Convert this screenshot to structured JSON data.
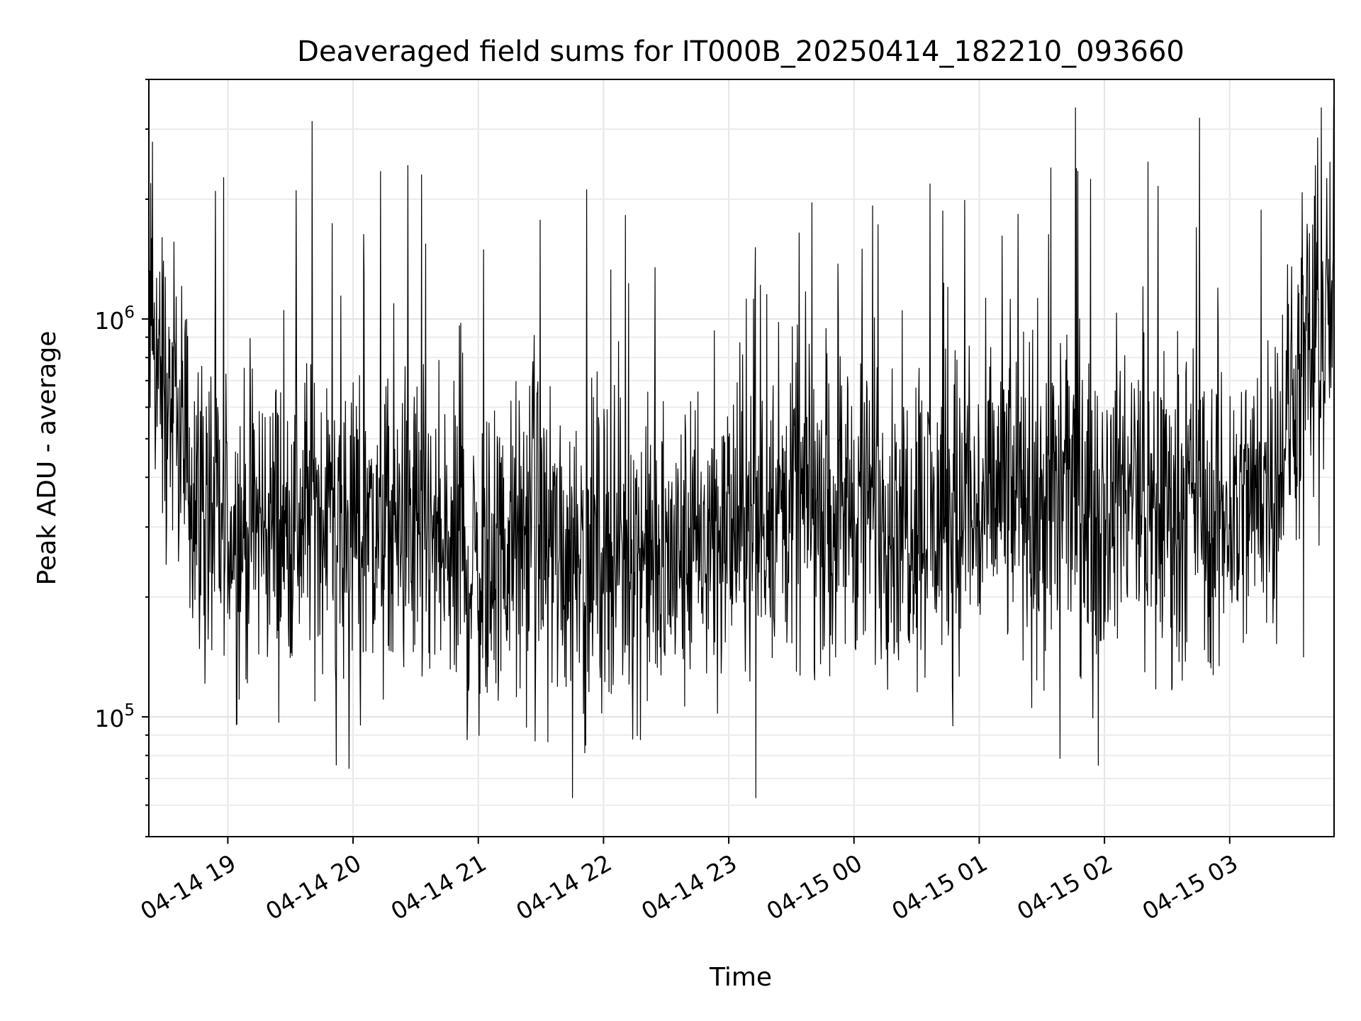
{
  "chart_data": {
    "type": "line",
    "title": "Deaveraged field sums for IT000B_20250414_182210_093660",
    "xlabel": "Time",
    "ylabel": "Peak ADU - average",
    "yscale": "log",
    "xlim": [
      "2025-04-14 18:22:10",
      "2025-04-15 03:50:00"
    ],
    "ylim": [
      50000,
      4000000
    ],
    "x_ticks": [
      "04-14 19",
      "04-14 20",
      "04-14 21",
      "04-14 22",
      "04-14 23",
      "04-15 00",
      "04-15 01",
      "04-15 02",
      "04-15 03"
    ],
    "y_ticks": [
      {
        "base": "10",
        "exp": "5"
      },
      {
        "base": "10",
        "exp": "6"
      }
    ],
    "grid": true,
    "line_color": "#000000",
    "series": [
      {
        "x": [
          "2025-04-14 18:22",
          "2025-04-14 18:30",
          "2025-04-14 18:40",
          "2025-04-14 18:50",
          "2025-04-14 19:00",
          "2025-04-14 19:10",
          "2025-04-14 19:20",
          "2025-04-14 19:30",
          "2025-04-14 19:40",
          "2025-04-14 19:50",
          "2025-04-14 20:00",
          "2025-04-14 20:10",
          "2025-04-14 20:20",
          "2025-04-14 20:30",
          "2025-04-14 20:40",
          "2025-04-14 20:50",
          "2025-04-14 21:00",
          "2025-04-14 21:10",
          "2025-04-14 21:20",
          "2025-04-14 21:30",
          "2025-04-14 21:40",
          "2025-04-14 21:50",
          "2025-04-14 22:00",
          "2025-04-14 22:10",
          "2025-04-14 22:20",
          "2025-04-14 22:30",
          "2025-04-14 22:40",
          "2025-04-14 22:50",
          "2025-04-14 23:00",
          "2025-04-14 23:10",
          "2025-04-14 23:20",
          "2025-04-14 23:30",
          "2025-04-14 23:40",
          "2025-04-14 23:50",
          "2025-04-15 00:00",
          "2025-04-15 00:10",
          "2025-04-15 00:20",
          "2025-04-15 00:30",
          "2025-04-15 00:40",
          "2025-04-15 00:50",
          "2025-04-15 01:00",
          "2025-04-15 01:10",
          "2025-04-15 01:20",
          "2025-04-15 01:30",
          "2025-04-15 01:40",
          "2025-04-15 01:50",
          "2025-04-15 02:00",
          "2025-04-15 02:10",
          "2025-04-15 02:20",
          "2025-04-15 02:30",
          "2025-04-15 02:40",
          "2025-04-15 02:50",
          "2025-04-15 03:00",
          "2025-04-15 03:10",
          "2025-04-15 03:20",
          "2025-04-15 03:30",
          "2025-04-15 03:40",
          "2025-04-15 03:50"
        ],
        "y": [
          950000,
          700000,
          420000,
          330000,
          280000,
          300000,
          310000,
          290000,
          350000,
          300000,
          310000,
          280000,
          290000,
          300000,
          260000,
          240000,
          230000,
          250000,
          280000,
          290000,
          260000,
          270000,
          270000,
          280000,
          260000,
          240000,
          250000,
          270000,
          300000,
          310000,
          320000,
          330000,
          360000,
          350000,
          340000,
          360000,
          320000,
          330000,
          300000,
          320000,
          310000,
          370000,
          350000,
          340000,
          380000,
          350000,
          340000,
          360000,
          330000,
          340000,
          350000,
          320000,
          330000,
          350000,
          400000,
          600000,
          900000,
          1000000
        ]
      }
    ]
  }
}
